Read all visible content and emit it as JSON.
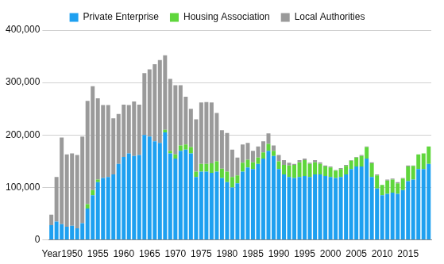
{
  "chart_data": {
    "type": "bar",
    "stacked": true,
    "grid": true,
    "legend": "top",
    "categories": [
      "Year",
      null,
      null,
      null,
      "1950",
      null,
      null,
      null,
      null,
      "1955",
      null,
      null,
      null,
      null,
      "1960",
      null,
      null,
      null,
      null,
      "1965",
      null,
      null,
      null,
      null,
      "1970",
      null,
      null,
      null,
      null,
      "1975",
      null,
      null,
      null,
      null,
      "1980",
      null,
      null,
      null,
      null,
      "1985",
      null,
      null,
      null,
      null,
      "1990",
      null,
      null,
      null,
      null,
      "1995",
      null,
      null,
      null,
      null,
      "2000",
      null,
      null,
      null,
      null,
      "2005",
      null,
      null,
      null,
      null,
      "2010",
      null,
      null,
      null,
      null,
      "2015",
      null,
      null,
      null,
      null
    ],
    "series": [
      {
        "name": "Private Enterprise",
        "color": "#1ea0f0",
        "values": [
          28000,
          35000,
          30000,
          25000,
          27000,
          22000,
          32000,
          60000,
          85000,
          110000,
          118000,
          120000,
          125000,
          145000,
          158000,
          165000,
          160000,
          162000,
          200000,
          197000,
          188000,
          185000,
          205000,
          165000,
          155000,
          170000,
          172000,
          165000,
          120000,
          130000,
          130000,
          128000,
          130000,
          118000,
          110000,
          100000,
          108000,
          130000,
          138000,
          135000,
          145000,
          155000,
          170000,
          160000,
          135000,
          125000,
          120000,
          118000,
          120000,
          122000,
          120000,
          125000,
          125000,
          122000,
          120000,
          118000,
          120000,
          125000,
          135000,
          140000,
          140000,
          155000,
          120000,
          98000,
          85000,
          88000,
          90000,
          88000,
          95000,
          112000,
          115000,
          135000,
          135000,
          145000
        ]
      },
      {
        "name": "Housing Association",
        "color": "#5fd63c",
        "values": [
          0,
          0,
          0,
          0,
          0,
          0,
          0,
          8000,
          10000,
          5000,
          0,
          0,
          0,
          0,
          0,
          0,
          0,
          0,
          0,
          0,
          0,
          0,
          5000,
          5000,
          8000,
          10000,
          10000,
          12000,
          10000,
          15000,
          15000,
          18000,
          20000,
          18000,
          20000,
          20000,
          15000,
          17000,
          15000,
          13000,
          12000,
          12000,
          13000,
          10000,
          15000,
          18000,
          22000,
          25000,
          28000,
          30000,
          25000,
          23000,
          20000,
          18000,
          18000,
          14000,
          15000,
          16000,
          16000,
          17000,
          20000,
          22000,
          26000,
          25000,
          20000,
          25000,
          25000,
          20000,
          22000,
          28000,
          26000,
          28000,
          30000,
          33000
        ]
      },
      {
        "name": "Local Authorities",
        "color": "#9a9a9a",
        "values": [
          20000,
          85000,
          165000,
          138000,
          138000,
          140000,
          165000,
          197000,
          198000,
          155000,
          139000,
          137000,
          107000,
          95000,
          100000,
          92000,
          104000,
          96000,
          118000,
          128000,
          147000,
          158000,
          142000,
          137000,
          132000,
          115000,
          91000,
          73000,
          100000,
          117000,
          118000,
          116000,
          92000,
          73000,
          74000,
          52000,
          34000,
          35000,
          32000,
          22000,
          21000,
          21000,
          20000,
          10000,
          12000,
          9000,
          5000,
          2000,
          4000,
          3000,
          2000,
          4000,
          3000,
          2000,
          2000,
          1000,
          2000,
          2000,
          1000,
          1000,
          2000,
          1000,
          2000,
          2000,
          0,
          2000,
          2000,
          2000,
          1000,
          2000,
          1000,
          0,
          0,
          0
        ]
      }
    ],
    "ylim": [
      0,
      400000
    ],
    "yticks": [
      0,
      {
        "value": 100000,
        "label": "100,000"
      },
      {
        "value": 200000,
        "label": "200,000"
      },
      {
        "value": 300000,
        "label": "300,000"
      },
      {
        "value": 400000,
        "label": "400,000"
      }
    ]
  }
}
